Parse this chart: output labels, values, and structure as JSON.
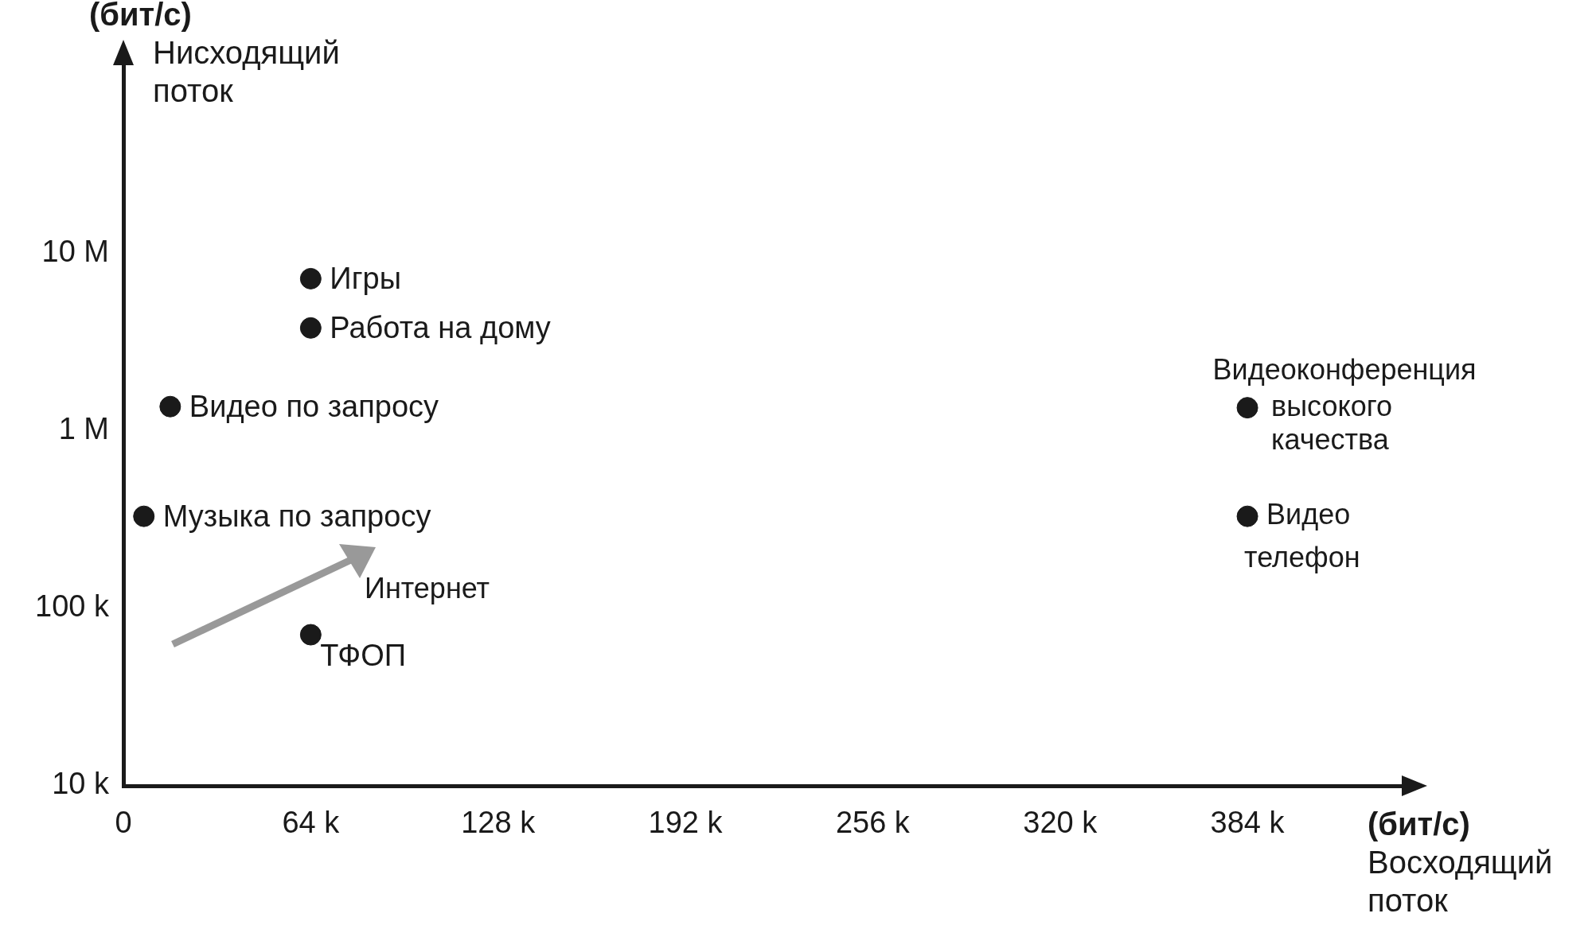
{
  "chart_data": {
    "type": "scatter",
    "x": [
      64000,
      64000,
      16000,
      7000,
      64000,
      384000,
      384000
    ],
    "values": [
      7200000,
      3800000,
      1370000,
      330000,
      71000,
      1350000,
      330000
    ],
    "color": "#1a1a1a",
    "marker": "circle",
    "log": "y",
    "grid": false,
    "legend": false,
    "xlim": [
      0,
      440000
    ],
    "xticks": [
      0,
      {
        "value": 64000,
        "label": "64 k"
      },
      {
        "value": 128000,
        "label": "128 k"
      },
      {
        "value": 192000,
        "label": "192 k"
      },
      {
        "value": 256000,
        "label": "256 k"
      },
      {
        "value": 320000,
        "label": "320 k"
      },
      {
        "value": 384000,
        "label": "384 k"
      }
    ],
    "ylim": [
      10000,
      130000000
    ],
    "yticks": [
      {
        "value": 10000,
        "label": "10 k"
      },
      {
        "value": 100000,
        "label": "100 k"
      },
      {
        "value": 1000000,
        "label": "1 M"
      },
      {
        "value": 10000000,
        "label": "10 M"
      }
    ],
    "xlabel": "(бит/с)\nВосходящий\nпоток",
    "ylabel": "(бит/с)\nНисходящий\nпоток",
    "annotations": [
      {
        "text": "Игры",
        "x": 64000,
        "y": 7200000
      },
      {
        "text": "Работа на дому",
        "x": 64000,
        "y": 3800000
      },
      {
        "text": "Видео по запросу",
        "x": 16000,
        "y": 1370000
      },
      {
        "text": "Музыка по запросу",
        "x": 7000,
        "y": 330000
      },
      {
        "text": "ТФОП",
        "x": 64000,
        "y": 71000
      },
      {
        "text": "Видеоконференция\nвысокого\nкачества",
        "x": 384000,
        "y": 1350000
      },
      {
        "text": "Видео\nтелефон",
        "x": 384000,
        "y": 330000
      },
      "Интернет"
    ]
  }
}
